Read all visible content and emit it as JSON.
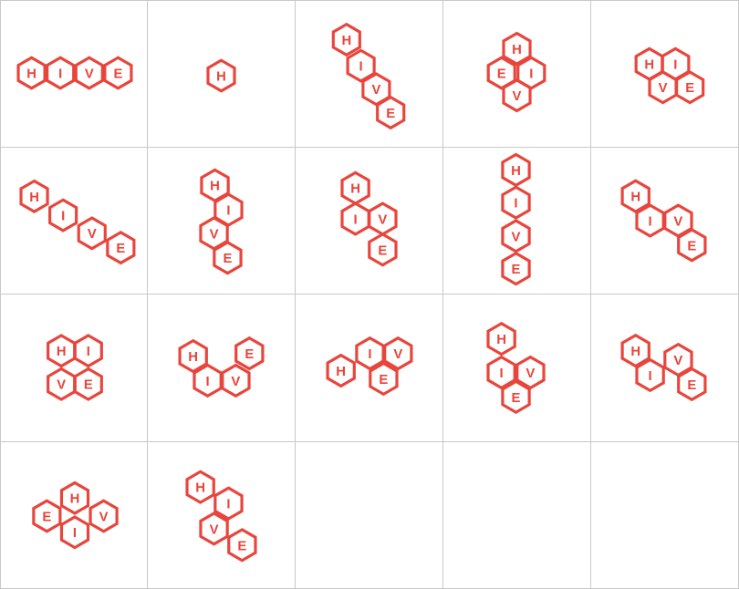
{
  "stroke_color": "#e8453c",
  "tiles": [
    {
      "letters": [
        "H",
        "I",
        "V",
        "E"
      ]
    },
    {
      "letters": [
        "H"
      ]
    },
    {
      "letters": [
        "H",
        "I",
        "V",
        "E"
      ]
    },
    {
      "letters": [
        "H",
        "E",
        "I",
        "V"
      ]
    },
    {
      "letters": [
        "H",
        "I",
        "V",
        "E"
      ]
    },
    {
      "letters": [
        "H",
        "I",
        "V",
        "E"
      ]
    },
    {
      "letters": [
        "H",
        "I",
        "V",
        "E"
      ]
    },
    {
      "letters": [
        "H",
        "I",
        "V",
        "E"
      ]
    },
    {
      "letters": [
        "H",
        "I",
        "V",
        "E"
      ]
    },
    {
      "letters": [
        "H",
        "I",
        "V",
        "E"
      ]
    },
    {
      "letters": [
        "H",
        "I",
        "V",
        "E"
      ]
    },
    {
      "letters": [
        "H",
        "E",
        "I",
        "V"
      ]
    },
    {
      "letters": [
        "H",
        "I",
        "V",
        "E"
      ]
    },
    {
      "letters": [
        "H",
        "I",
        "V",
        "E"
      ]
    },
    {
      "letters": [
        "H",
        "I",
        "V",
        "E"
      ]
    },
    {
      "letters": [
        "H",
        "E",
        "V",
        "I"
      ]
    },
    {
      "letters": [
        "H",
        "I",
        "V",
        "E"
      ]
    },
    {
      "letters": []
    },
    {
      "letters": []
    },
    {
      "letters": []
    }
  ]
}
